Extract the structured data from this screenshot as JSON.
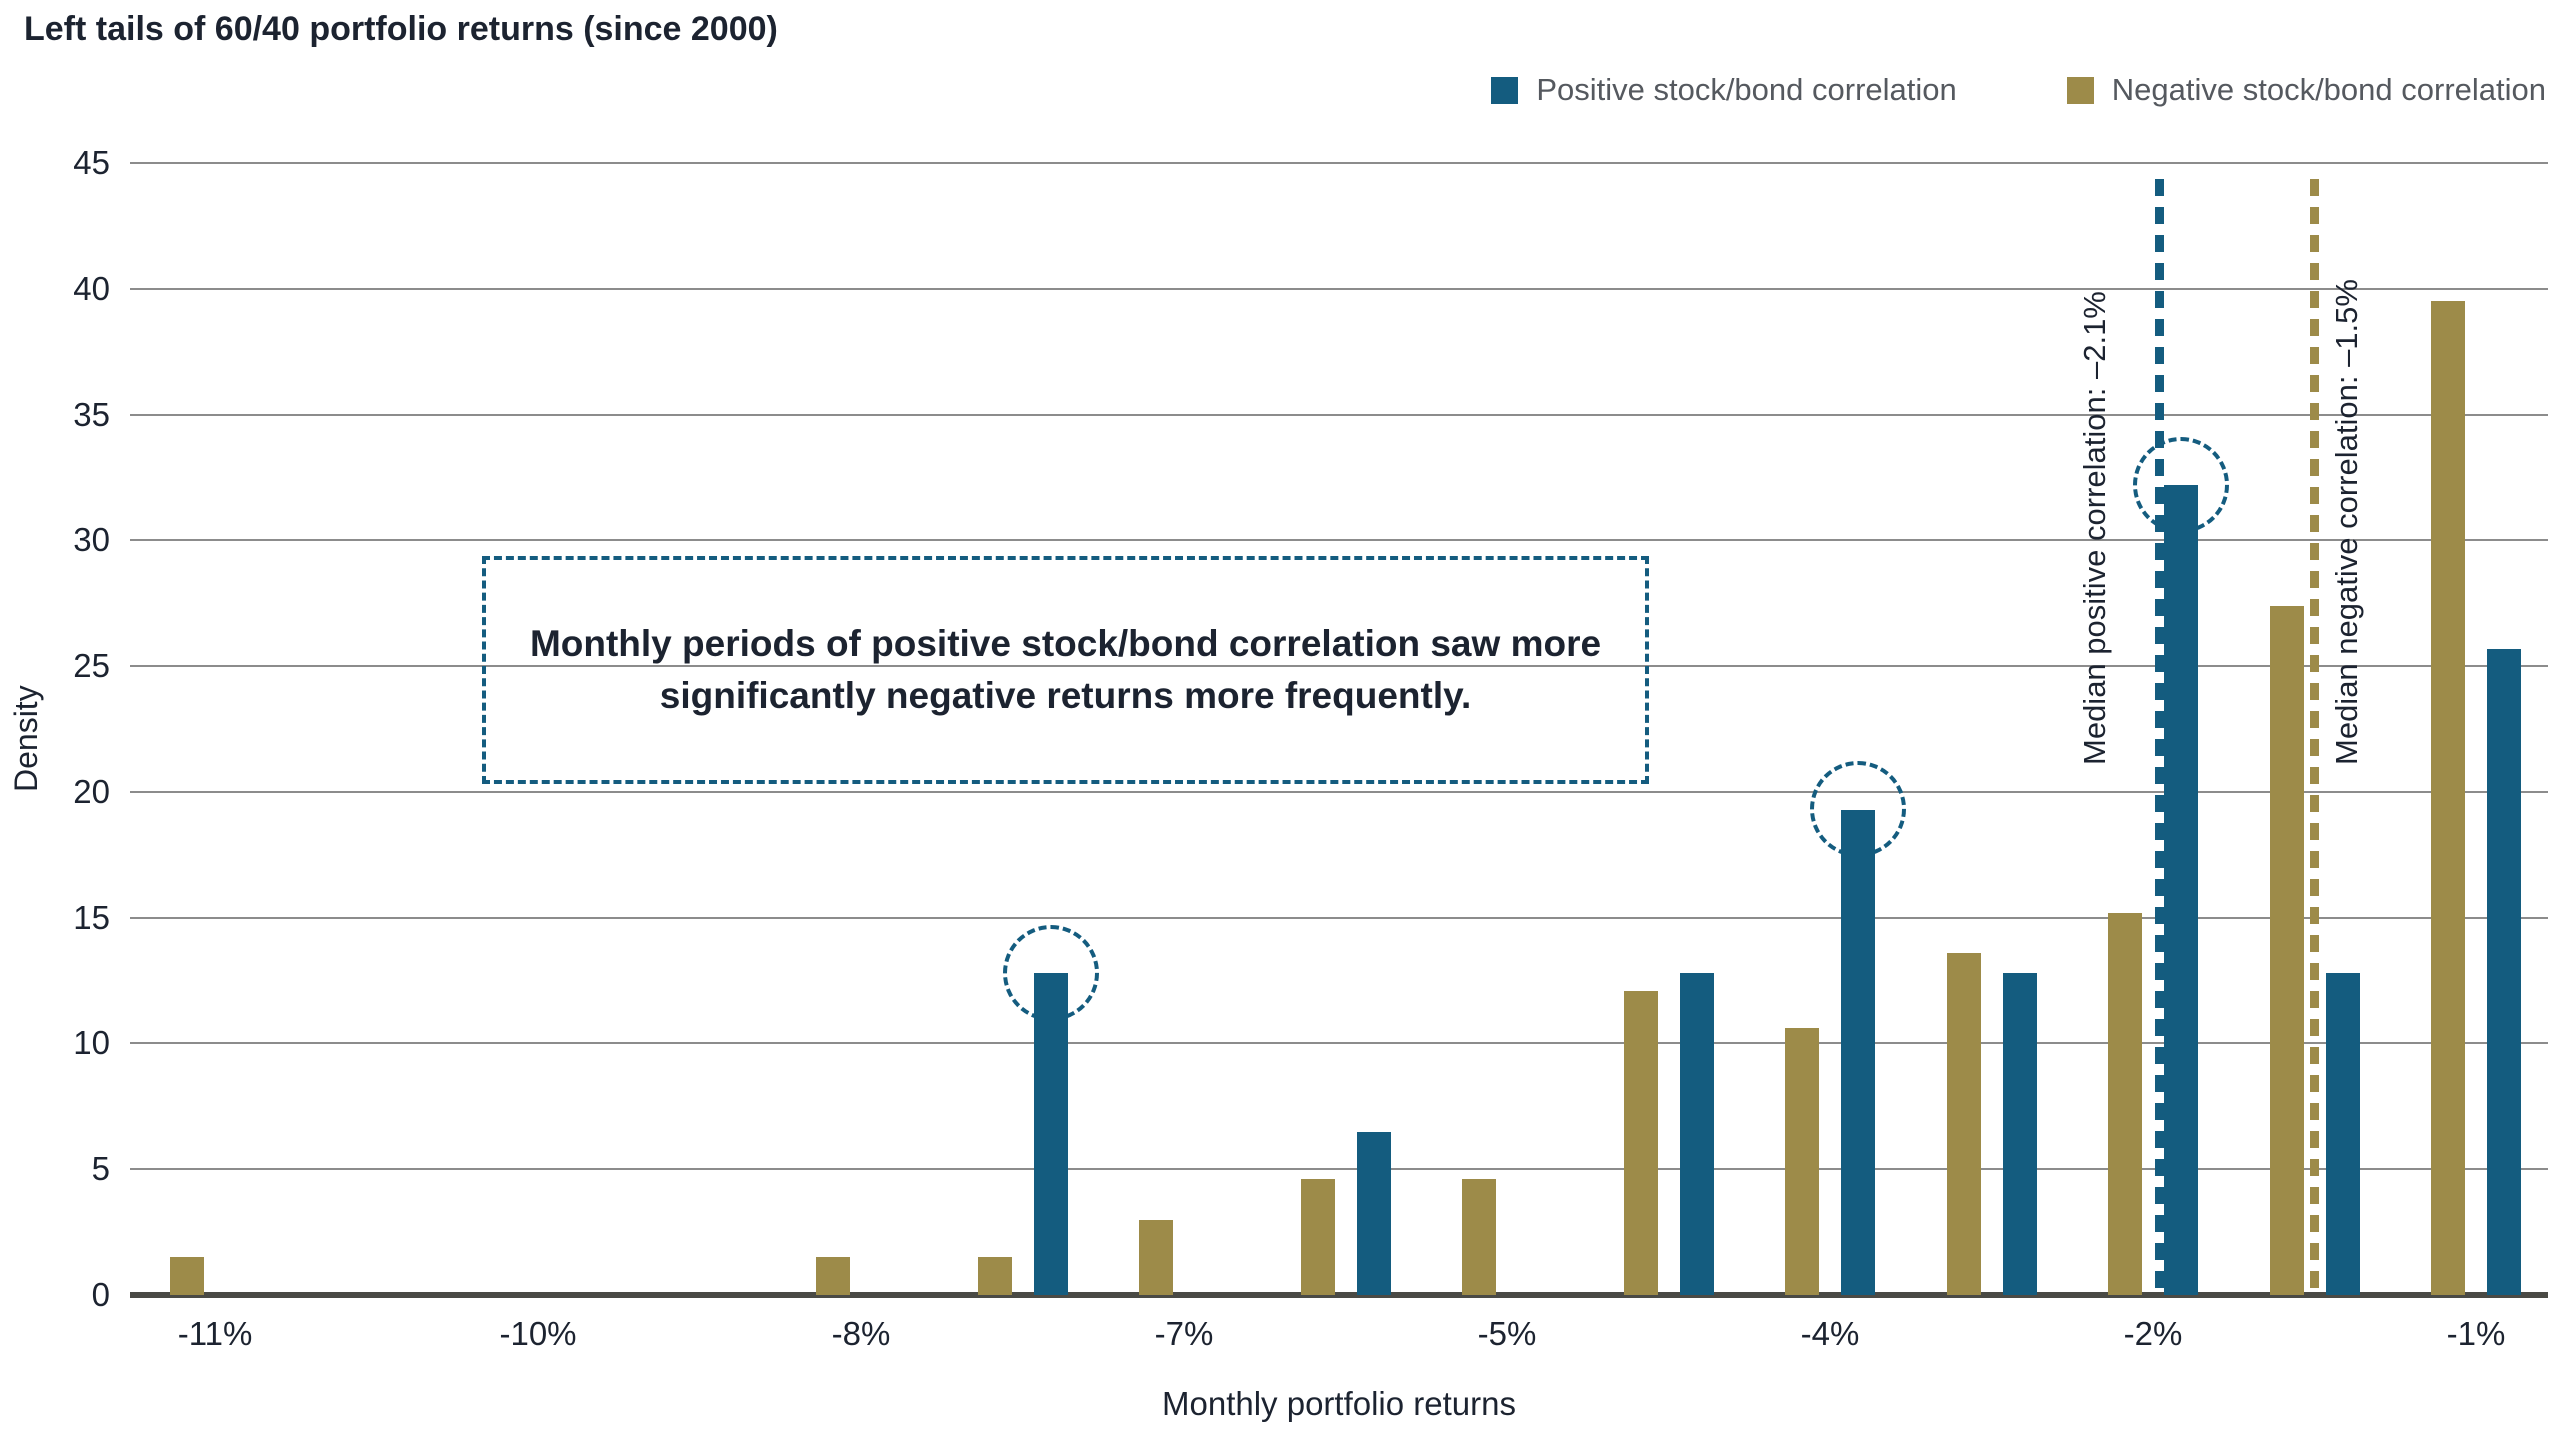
{
  "title": "Left tails of 60/40 portfolio returns (since 2000)",
  "legend": [
    {
      "label": "Positive stock/bond correlation",
      "color": "#145c7f"
    },
    {
      "label": "Negative stock/bond correlation",
      "color": "#9d8b49"
    }
  ],
  "annotation": "Monthly periods of positive stock/bond correlation saw more\nsignificantly negative returns more frequently.",
  "colors": {
    "positive": "#145c7f",
    "negative": "#9d8b49",
    "grid": "#8c8c8c",
    "axis": "#4a4a45",
    "text": "#1c2330"
  },
  "chart_data": {
    "type": "bar",
    "title": "Left tails of 60/40 portfolio returns (since 2000)",
    "xlabel": "Monthly portfolio returns",
    "ylabel": "Density",
    "ylim": [
      0,
      45
    ],
    "ytick_step": 5,
    "grid": "horizontal",
    "legend_position": "top-right",
    "x_ticks": [
      "-11%",
      "-10%",
      "-8%",
      "-7%",
      "-5%",
      "-4%",
      "-2%",
      "-1%"
    ],
    "series_names": [
      "Negative stock/bond correlation",
      "Positive stock/bond correlation"
    ],
    "clusters": [
      {
        "pos": 0.0,
        "negative": 1.5,
        "positive": null,
        "circled": false
      },
      {
        "pos": 2.0,
        "negative": 1.5,
        "positive": null,
        "circled": false
      },
      {
        "pos": 2.5,
        "negative": 1.5,
        "positive": 12.8,
        "circled": true
      },
      {
        "pos": 3.0,
        "negative": 3.0,
        "positive": null,
        "circled": false
      },
      {
        "pos": 3.5,
        "negative": 4.6,
        "positive": 6.5,
        "circled": false
      },
      {
        "pos": 4.0,
        "negative": 4.6,
        "positive": null,
        "circled": false
      },
      {
        "pos": 4.5,
        "negative": 12.1,
        "positive": 12.8,
        "circled": false
      },
      {
        "pos": 5.0,
        "negative": 10.6,
        "positive": 19.3,
        "circled": true
      },
      {
        "pos": 5.5,
        "negative": 13.6,
        "positive": 12.8,
        "circled": false
      },
      {
        "pos": 6.0,
        "negative": 15.2,
        "positive": 32.2,
        "circled": true
      },
      {
        "pos": 6.5,
        "negative": 27.4,
        "positive": 12.8,
        "circled": false
      },
      {
        "pos": 7.0,
        "negative": 39.5,
        "positive": 25.7,
        "circled": false
      }
    ],
    "median_lines": [
      {
        "label": "Median positive correlation: –2.1%",
        "pos": 6.02,
        "series": "positive",
        "label_side": "left"
      },
      {
        "label": "Median negative correlation: –1.5%",
        "pos": 6.5,
        "series": "negative",
        "label_side": "right"
      }
    ]
  }
}
